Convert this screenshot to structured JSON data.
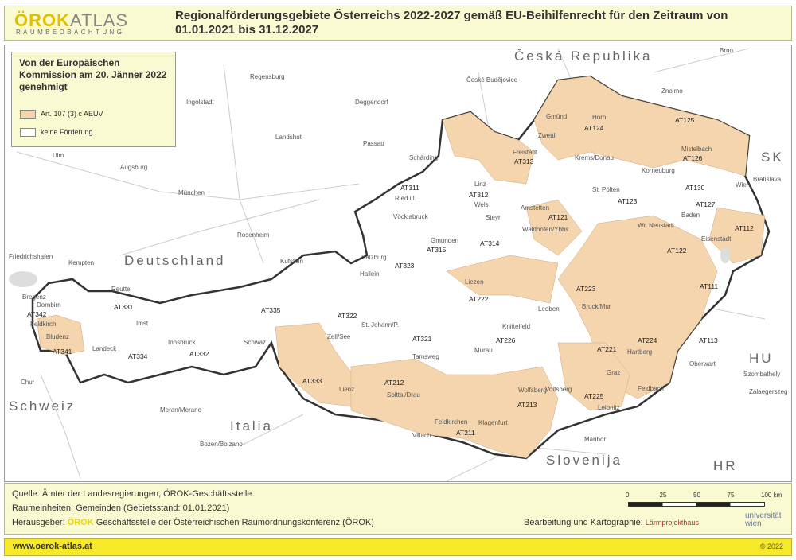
{
  "header": {
    "logo_main": "ÖROK",
    "logo_atlas": "ATLAS",
    "logo_sub": "RAUMBEOBACHTUNG",
    "title": "Regionalförderungsgebiete Österreichs 2022-2027 gemäß EU-Beihilfenrecht für den Zeitraum von 01.01.2021 bis 31.12.2027"
  },
  "legend": {
    "title": "Von der Europäischen Kommission am 20. Jänner 2022 genehmigt",
    "items": [
      {
        "label": "Art. 107 (3) c AEUV",
        "color": "#f5d5ad"
      },
      {
        "label": "keine Förderung",
        "color": "#ffffff"
      }
    ]
  },
  "map": {
    "countries": [
      "Česká Republika",
      "Deutschland",
      "Schweiz",
      "Italia",
      "Slovenija",
      "SK",
      "HU",
      "HR"
    ],
    "places": [
      "Regensburg",
      "České Budějovice",
      "Brno",
      "Znojmo",
      "Ingolstadt",
      "Deggendorf",
      "Landshut",
      "Passau",
      "Ulm",
      "Augsburg",
      "München",
      "Rosenheim",
      "Friedrichshafen",
      "Kempten",
      "Bratislava",
      "Szombathely",
      "Zalaegerszeg",
      "Chur",
      "Meran/Merano",
      "Bozen/Bolzano",
      "Maribor",
      "Gmünd",
      "Horn",
      "Zwettl",
      "Mistelbach",
      "Freistadt",
      "Krems/Donau",
      "Korneuburg",
      "Wien",
      "Schärding",
      "Ried i.I.",
      "Linz",
      "Wels",
      "Steyr",
      "St. Pölten",
      "Amstetten",
      "Waldhofen/Ybbs",
      "Baden",
      "Wr. Neustadt",
      "Eisenstadt",
      "Vöcklabruck",
      "Gmunden",
      "Salzburg",
      "Hallein",
      "Kufstein",
      "Reutte",
      "Bregenz",
      "Dornbirn",
      "Feldkirch",
      "Bludenz",
      "Imst",
      "Innsbruck",
      "Schwaz",
      "Landeck",
      "Zell/See",
      "St. Johann/P.",
      "Liezen",
      "Leoben",
      "Bruck/Mur",
      "Hartberg",
      "Oberwart",
      "Knittelfeld",
      "Tamsweg",
      "Murau",
      "Graz",
      "Voitsberg",
      "Feldbach",
      "Leibnitz",
      "Wolfsberg",
      "Lienz",
      "Spittal/Drau",
      "Feldkirchen",
      "Villach",
      "Klagenfurt"
    ],
    "regions": [
      "AT124",
      "AT125",
      "AT126",
      "AT313",
      "AT311",
      "AT312",
      "AT130",
      "AT121",
      "AT123",
      "AT127",
      "AT112",
      "AT314",
      "AT315",
      "AT323",
      "AT122",
      "AT331",
      "AT335",
      "AT322",
      "AT342",
      "AT341",
      "AT334",
      "AT332",
      "AT222",
      "AT223",
      "AT111",
      "AT321",
      "AT226",
      "AT224",
      "AT113",
      "AT221",
      "AT333",
      "AT212",
      "AT213",
      "AT225",
      "AT211"
    ],
    "support_color": "#f5d5ad",
    "scale": {
      "ticks": [
        "0",
        "25",
        "50",
        "75",
        "100 km"
      ]
    }
  },
  "footer": {
    "source": "Quelle: Ämter der Landesregierungen, ÖROK-Geschäftsstelle",
    "units": "Raumeinheiten: Gemeinden (Gebietsstand: 01.01.2021)",
    "publisher_label": "Herausgeber:",
    "publisher_logo": "ÖROK",
    "publisher": "Geschäftsstelle der Österreichischen Raumordnungskonferenz (ÖROK)",
    "cartography_label": "Bearbeitung und Kartographie:",
    "cartography_logo": "Lärmprojekthaus",
    "uni_logo": "universität wien",
    "url": "www.oerok-atlas.at",
    "copyright": "© 2022"
  }
}
